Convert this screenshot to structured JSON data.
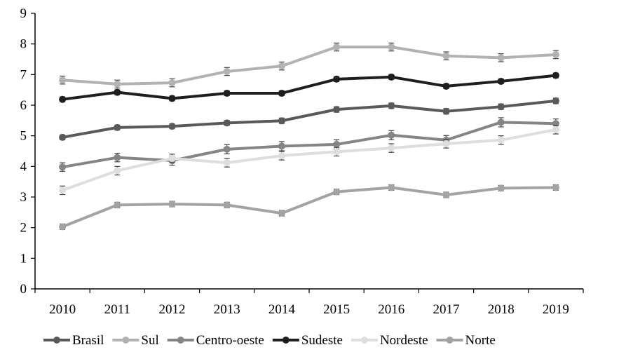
{
  "chart_data": {
    "type": "line",
    "x": [
      "2010",
      "2011",
      "2012",
      "2013",
      "2014",
      "2015",
      "2016",
      "2017",
      "2018",
      "2019"
    ],
    "ylim": [
      0,
      9
    ],
    "yticks": [
      0,
      1,
      2,
      3,
      4,
      5,
      6,
      7,
      8,
      9
    ],
    "grid": false,
    "legend": "bottom",
    "error_bars": true,
    "series": [
      {
        "name": "Brasil",
        "color": "#5a5a5a",
        "values": [
          4.95,
          5.27,
          5.31,
          5.42,
          5.49,
          5.86,
          5.98,
          5.8,
          5.95,
          6.14
        ],
        "err": [
          0.08,
          0.08,
          0.08,
          0.08,
          0.09,
          0.09,
          0.09,
          0.09,
          0.09,
          0.09
        ]
      },
      {
        "name": "Sul",
        "color": "#b2b2b2",
        "values": [
          6.82,
          6.69,
          6.73,
          7.1,
          7.28,
          7.9,
          7.9,
          7.61,
          7.55,
          7.65
        ],
        "err": [
          0.13,
          0.13,
          0.13,
          0.13,
          0.13,
          0.13,
          0.13,
          0.13,
          0.13,
          0.13
        ]
      },
      {
        "name": "Centro-oeste",
        "color": "#858585",
        "values": [
          3.98,
          4.29,
          4.19,
          4.56,
          4.66,
          4.72,
          5.02,
          4.86,
          5.44,
          5.4
        ],
        "err": [
          0.14,
          0.14,
          0.15,
          0.15,
          0.15,
          0.15,
          0.15,
          0.15,
          0.15,
          0.15
        ]
      },
      {
        "name": "Sudeste",
        "color": "#1e1e1e",
        "values": [
          6.19,
          6.42,
          6.22,
          6.39,
          6.39,
          6.85,
          6.92,
          6.62,
          6.78,
          6.97
        ],
        "err": [
          0.08,
          0.08,
          0.08,
          0.08,
          0.08,
          0.08,
          0.08,
          0.08,
          0.08,
          0.08
        ]
      },
      {
        "name": "Nordeste",
        "color": "#dedede",
        "values": [
          3.22,
          3.86,
          4.26,
          4.12,
          4.35,
          4.48,
          4.6,
          4.74,
          4.86,
          5.2
        ],
        "err": [
          0.14,
          0.14,
          0.14,
          0.14,
          0.14,
          0.14,
          0.14,
          0.14,
          0.14,
          0.14
        ]
      },
      {
        "name": "Norte",
        "color": "#a3a3a3",
        "values": [
          2.03,
          2.74,
          2.77,
          2.74,
          2.47,
          3.17,
          3.31,
          3.07,
          3.29,
          3.31
        ],
        "err": [
          0.09,
          0.09,
          0.09,
          0.09,
          0.09,
          0.09,
          0.09,
          0.09,
          0.09,
          0.09
        ]
      }
    ]
  }
}
